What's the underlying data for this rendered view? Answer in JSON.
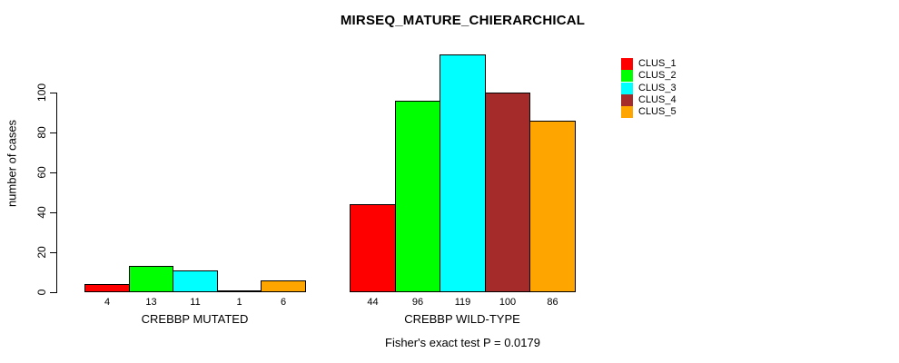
{
  "chart_data": {
    "type": "bar",
    "title": "MIRSEQ_MATURE_CHIERARCHICAL",
    "ylabel": "number of cases",
    "xlabel": "",
    "annotation": "Fisher's exact test P = 0.0179",
    "categories": [
      "CREBBP MUTATED",
      "CREBBP WILD-TYPE"
    ],
    "series": [
      {
        "name": "CLUS_1",
        "color": "#ff0000",
        "values": [
          4,
          44
        ]
      },
      {
        "name": "CLUS_2",
        "color": "#00ff00",
        "values": [
          13,
          96
        ]
      },
      {
        "name": "CLUS_3",
        "color": "#00ffff",
        "values": [
          11,
          119
        ]
      },
      {
        "name": "CLUS_4",
        "color": "#a52a2a",
        "values": [
          1,
          100
        ]
      },
      {
        "name": "CLUS_5",
        "color": "#ffa500",
        "values": [
          6,
          86
        ]
      }
    ],
    "yticks": [
      0,
      20,
      40,
      60,
      80,
      100
    ],
    "ylim": [
      0,
      120
    ],
    "grid": false,
    "legend_position": "top-right",
    "bar_border_color": "#000000",
    "value_labels_shown": true
  }
}
